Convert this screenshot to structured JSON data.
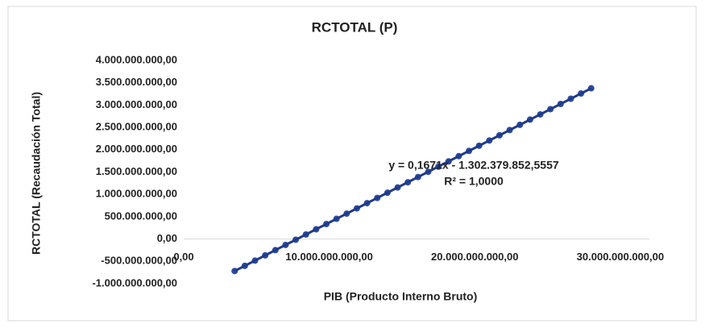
{
  "chart_data": {
    "type": "scatter",
    "title": "RCTOTAL (P)",
    "x_label": "PIB (Producto Interno Bruto)",
    "y_label": "RCTOTAL (Recaudación Total)",
    "color": "#2f4b9a",
    "x": [
      3500000000,
      4200000000,
      4900000000,
      5600000000,
      6300000000,
      7000000000,
      7700000000,
      8400000000,
      9100000000,
      9800000000,
      10500000000,
      11200000000,
      11900000000,
      12600000000,
      13300000000,
      14000000000,
      14700000000,
      15400000000,
      16100000000,
      16800000000,
      17500000000,
      18200000000,
      18900000000,
      19600000000,
      20300000000,
      21000000000,
      21700000000,
      22400000000,
      23100000000,
      23800000000,
      24500000000,
      25200000000,
      25900000000,
      26600000000,
      27300000000,
      28000000000
    ],
    "values": [
      -717600000,
      -600600000,
      -483600000,
      -366600000,
      -249700000,
      -132700000,
      -15700000,
      101200000,
      218200000,
      335200000,
      452200000,
      569100000,
      686100000,
      803100000,
      920000000,
      1037000000,
      1154000000,
      1270900000,
      1387900000,
      1504900000,
      1621900000,
      1738800000,
      1855800000,
      1972800000,
      2089700000,
      2206700000,
      2323700000,
      2440600000,
      2557600000,
      2674600000,
      2791600000,
      2908500000,
      3025500000,
      3142500000,
      3259400000,
      3376400000
    ],
    "xlim": [
      0,
      32000000000
    ],
    "ylim": [
      -1000000000,
      4000000000
    ],
    "xticks": [
      {
        "value": 0,
        "label": "0,00"
      },
      {
        "value": 10000000000,
        "label": "10.000.000.000,00"
      },
      {
        "value": 20000000000,
        "label": "20.000.000.000,00"
      },
      {
        "value": 30000000000,
        "label": "30.000.000.000,00"
      }
    ],
    "yticks": [
      {
        "value": -1000000000,
        "label": "-1.000.000.000,00"
      },
      {
        "value": -500000000,
        "label": "-500.000.000,00"
      },
      {
        "value": 0,
        "label": "0,00"
      },
      {
        "value": 500000000,
        "label": "500.000.000,00"
      },
      {
        "value": 1000000000,
        "label": "1.000.000.000,00"
      },
      {
        "value": 1500000000,
        "label": "1.500.000.000,00"
      },
      {
        "value": 2000000000,
        "label": "2.000.000.000,00"
      },
      {
        "value": 2500000000,
        "label": "2.500.000.000,00"
      },
      {
        "value": 3000000000,
        "label": "3.000.000.000,00"
      },
      {
        "value": 3500000000,
        "label": "3.500.000.000,00"
      },
      {
        "value": 4000000000,
        "label": "4.000.000.000,00"
      }
    ],
    "trendline": {
      "slope": 0.1671,
      "intercept": -1302379852.5557,
      "color": "#1f3a8a",
      "equation": "y = 0,1671x - 1.302.379.852,5557",
      "r2": "R² = 1,0000"
    }
  }
}
